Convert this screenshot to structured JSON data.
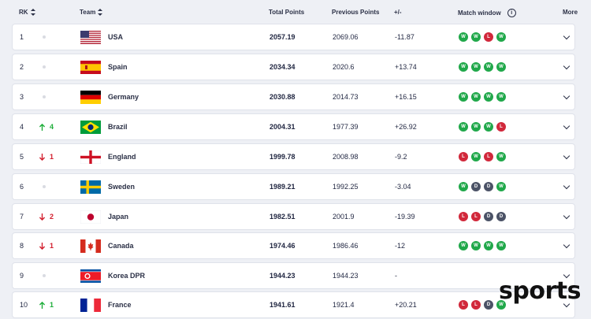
{
  "columns": {
    "rank": "RK",
    "team": "Team",
    "total_points": "Total Points",
    "previous_points": "Previous Points",
    "diff": "+/-",
    "match_window": "Match window",
    "more": "More"
  },
  "rows": [
    {
      "rank": "1",
      "movement": "",
      "direction": "none",
      "flag": "usa-flag",
      "team": "USA",
      "total": "2057.19",
      "previous": "2069.06",
      "diff": "-11.87",
      "window": [
        "W",
        "W",
        "L",
        "W"
      ]
    },
    {
      "rank": "2",
      "movement": "",
      "direction": "none",
      "flag": "spain-flag",
      "team": "Spain",
      "total": "2034.34",
      "previous": "2020.6",
      "diff": "+13.74",
      "window": [
        "W",
        "W",
        "W",
        "W"
      ]
    },
    {
      "rank": "3",
      "movement": "",
      "direction": "none",
      "flag": "germany-flag",
      "team": "Germany",
      "total": "2030.88",
      "previous": "2014.73",
      "diff": "+16.15",
      "window": [
        "W",
        "W",
        "W",
        "W"
      ]
    },
    {
      "rank": "4",
      "movement": "4",
      "direction": "up",
      "flag": "brazil-flag",
      "team": "Brazil",
      "total": "2004.31",
      "previous": "1977.39",
      "diff": "+26.92",
      "window": [
        "W",
        "W",
        "W",
        "L"
      ]
    },
    {
      "rank": "5",
      "movement": "1",
      "direction": "down",
      "flag": "england-flag",
      "team": "England",
      "total": "1999.78",
      "previous": "2008.98",
      "diff": "-9.2",
      "window": [
        "L",
        "W",
        "L",
        "W"
      ]
    },
    {
      "rank": "6",
      "movement": "",
      "direction": "none",
      "flag": "sweden-flag",
      "team": "Sweden",
      "total": "1989.21",
      "previous": "1992.25",
      "diff": "-3.04",
      "window": [
        "W",
        "D",
        "D",
        "W"
      ]
    },
    {
      "rank": "7",
      "movement": "2",
      "direction": "down",
      "flag": "japan-flag",
      "team": "Japan",
      "total": "1982.51",
      "previous": "2001.9",
      "diff": "-19.39",
      "window": [
        "L",
        "L",
        "D",
        "D"
      ]
    },
    {
      "rank": "8",
      "movement": "1",
      "direction": "down",
      "flag": "canada-flag",
      "team": "Canada",
      "total": "1974.46",
      "previous": "1986.46",
      "diff": "-12",
      "window": [
        "W",
        "W",
        "W",
        "W"
      ]
    },
    {
      "rank": "9",
      "movement": "",
      "direction": "none",
      "flag": "korea-dpr-flag",
      "team": "Korea DPR",
      "total": "1944.23",
      "previous": "1944.23",
      "diff": "-",
      "window": []
    },
    {
      "rank": "10",
      "movement": "1",
      "direction": "up",
      "flag": "france-flag",
      "team": "France",
      "total": "1941.61",
      "previous": "1921.4",
      "diff": "+20.21",
      "window": [
        "L",
        "L",
        "D",
        "W"
      ]
    }
  ],
  "icons": {
    "up": "arrow-up-icon",
    "down": "arrow-down-icon",
    "info": "info-icon",
    "expand": "chevron-down-icon"
  },
  "colors": {
    "win": "#20a84a",
    "loss": "#d1283b",
    "draw": "#4b5266",
    "up": "#1fae3b",
    "down": "#d3202f"
  },
  "watermark": "sports"
}
